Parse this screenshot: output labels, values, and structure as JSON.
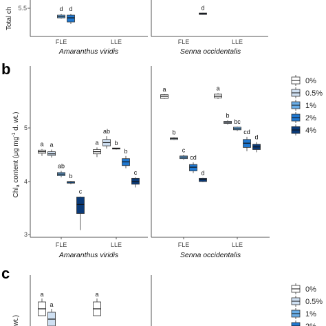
{
  "colors": {
    "0%": "#ffffff",
    "0.5%": "#cfe0f2",
    "1%": "#6aaee8",
    "2%": "#1f78d1",
    "4%": "#0a3a78",
    "axis": "#555555",
    "box_stroke": "#333333"
  },
  "chart_data": [
    {
      "panel": "a",
      "type": "box",
      "ylabel": "Total ch",
      "yticks": [
        "5.5"
      ],
      "ylim_visible": [
        5.2,
        6.0
      ],
      "grid": false,
      "facets": [
        {
          "species": "Amaranthus viridis",
          "categories": [
            "FLE",
            "LLE"
          ],
          "groups": [
            {
              "category": "FLE",
              "treatment": "1%",
              "median": 5.38,
              "q1": 5.36,
              "q3": 5.4,
              "min": 5.35,
              "max": 5.42,
              "letter": "d"
            },
            {
              "category": "FLE",
              "treatment": "2%",
              "median": 5.36,
              "q1": 5.3,
              "q3": 5.4,
              "min": 5.27,
              "max": 5.42,
              "letter": "d"
            }
          ]
        },
        {
          "species": "Senna occidentalis",
          "categories": [
            "FLE",
            "LLE"
          ],
          "groups": [
            {
              "category": "FLE",
              "treatment": "4%",
              "median": 5.42,
              "q1": 5.41,
              "q3": 5.43,
              "min": 5.405,
              "max": 5.435,
              "letter": "d"
            }
          ]
        }
      ]
    },
    {
      "panel": "b",
      "type": "box",
      "ylabel_parts": [
        "Chl",
        "a",
        " content (μg mg",
        "-1",
        " d. wt.)"
      ],
      "yticks": [
        "3",
        "4",
        "5"
      ],
      "ylim": [
        2.95,
        5.95
      ],
      "grid": false,
      "legend": {
        "position": "right",
        "entries": [
          "0%",
          "0.5%",
          "1%",
          "2%",
          "4%"
        ]
      },
      "facets": [
        {
          "species": "Amaranthus viridis",
          "categories": [
            "FLE",
            "LLE"
          ],
          "groups": [
            {
              "category": "FLE",
              "treatment": "0%",
              "median": 4.56,
              "q1": 4.53,
              "q3": 4.59,
              "min": 4.48,
              "max": 4.61,
              "letter": "a"
            },
            {
              "category": "FLE",
              "treatment": "0.5%",
              "median": 4.52,
              "q1": 4.49,
              "q3": 4.56,
              "min": 4.45,
              "max": 4.6,
              "letter": "a"
            },
            {
              "category": "FLE",
              "treatment": "1%",
              "median": 4.14,
              "q1": 4.11,
              "q3": 4.17,
              "min": 4.08,
              "max": 4.2,
              "letter": "ab"
            },
            {
              "category": "FLE",
              "treatment": "2%",
              "median": 3.99,
              "q1": 3.97,
              "q3": 4.0,
              "min": 3.95,
              "max": 4.01,
              "letter": "b"
            },
            {
              "category": "FLE",
              "treatment": "4%",
              "median": 3.57,
              "q1": 3.4,
              "q3": 3.71,
              "min": 3.09,
              "max": 3.72,
              "letter": "c"
            },
            {
              "category": "LLE",
              "treatment": "0%",
              "median": 4.56,
              "q1": 4.52,
              "q3": 4.6,
              "min": 4.46,
              "max": 4.64,
              "letter": "a"
            },
            {
              "category": "LLE",
              "treatment": "0.5%",
              "median": 4.73,
              "q1": 4.67,
              "q3": 4.79,
              "min": 4.62,
              "max": 4.85,
              "letter": "ab"
            },
            {
              "category": "LLE",
              "treatment": "1%",
              "median": 4.62,
              "q1": 4.61,
              "q3": 4.63,
              "min": 4.6,
              "max": 4.63,
              "letter": "b"
            },
            {
              "category": "LLE",
              "treatment": "2%",
              "median": 4.37,
              "q1": 4.3,
              "q3": 4.43,
              "min": 4.25,
              "max": 4.48,
              "letter": "b"
            },
            {
              "category": "LLE",
              "treatment": "4%",
              "median": 4.0,
              "q1": 3.95,
              "q3": 4.06,
              "min": 3.89,
              "max": 4.08,
              "letter": "c"
            }
          ]
        },
        {
          "species": "Senna occidentalis",
          "categories": [
            "FLE",
            "LLE"
          ],
          "groups": [
            {
              "category": "FLE",
              "treatment": "0%",
              "median": 5.6,
              "q1": 5.56,
              "q3": 5.63,
              "min": 5.55,
              "max": 5.64,
              "letter": "a"
            },
            {
              "category": "FLE",
              "treatment": "0.5%",
              "median": 4.81,
              "q1": 4.79,
              "q3": 4.82,
              "min": 4.78,
              "max": 4.83,
              "letter": "b"
            },
            {
              "category": "FLE",
              "treatment": "1%",
              "median": 4.46,
              "q1": 4.43,
              "q3": 4.48,
              "min": 4.41,
              "max": 4.5,
              "letter": "c"
            },
            {
              "category": "FLE",
              "treatment": "2%",
              "median": 4.27,
              "q1": 4.2,
              "q3": 4.32,
              "min": 4.16,
              "max": 4.36,
              "letter": "cd"
            },
            {
              "category": "FLE",
              "treatment": "4%",
              "median": 4.04,
              "q1": 4.0,
              "q3": 4.06,
              "min": 3.99,
              "max": 4.07,
              "letter": "d"
            },
            {
              "category": "LLE",
              "treatment": "0%",
              "median": 5.6,
              "q1": 5.57,
              "q3": 5.64,
              "min": 5.55,
              "max": 5.66,
              "letter": "a"
            },
            {
              "category": "LLE",
              "treatment": "0.5%",
              "median": 5.11,
              "q1": 5.09,
              "q3": 5.13,
              "min": 5.07,
              "max": 5.15,
              "letter": "b"
            },
            {
              "category": "LLE",
              "treatment": "1%",
              "median": 4.99,
              "q1": 4.97,
              "q3": 5.02,
              "min": 4.95,
              "max": 5.03,
              "letter": "bc"
            },
            {
              "category": "LLE",
              "treatment": "2%",
              "median": 4.72,
              "q1": 4.64,
              "q3": 4.79,
              "min": 4.57,
              "max": 4.84,
              "letter": "cd"
            },
            {
              "category": "LLE",
              "treatment": "4%",
              "median": 4.65,
              "q1": 4.6,
              "q3": 4.7,
              "min": 4.55,
              "max": 4.74,
              "letter": "d"
            }
          ]
        }
      ]
    },
    {
      "panel": "c",
      "type": "box",
      "ylabel": "wt.)",
      "legend": {
        "position": "right",
        "entries": [
          "0%",
          "0.5%",
          "1%",
          "2%"
        ]
      },
      "grid": false,
      "facets": [
        {
          "species": "Amaranthus viridis",
          "categories": [
            "FLE",
            "LLE"
          ],
          "groups": [
            {
              "category": "FLE",
              "treatment": "0%",
              "median": 0.5,
              "letter": "a"
            },
            {
              "category": "FLE",
              "treatment": "0.5%",
              "median": 0.2,
              "letter": "a"
            },
            {
              "category": "LLE",
              "treatment": "0%",
              "median": 0.5,
              "letter": "a"
            }
          ]
        }
      ]
    }
  ]
}
